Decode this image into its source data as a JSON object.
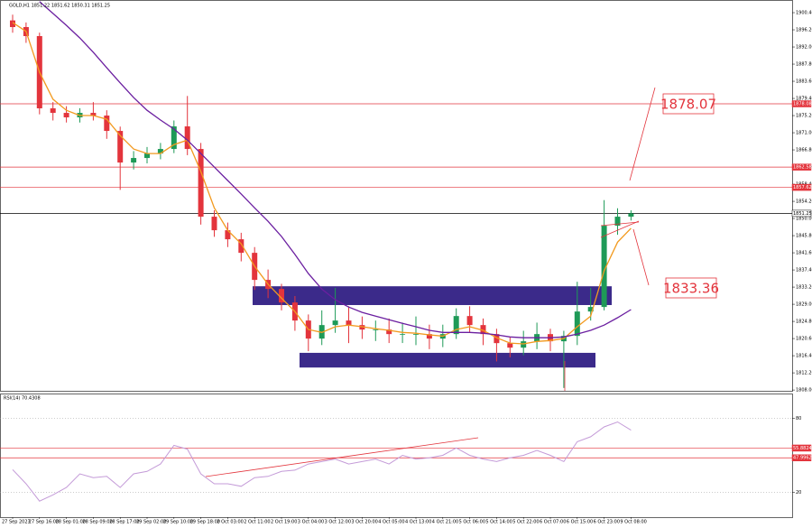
{
  "chart_data": [
    {
      "type": "candlestick",
      "title": "GOLD,H1  1851.22 1851.62 1850.31 1851.25",
      "categories": [
        "27 Sep 2023",
        null,
        "27 Sep 16:00",
        null,
        "28 Sep 01:00",
        null,
        "28 Sep 09:00",
        null,
        "28 Sep 17:00",
        null,
        "29 Sep 02:00",
        null,
        "29 Sep 10:00",
        null,
        "29 Sep 18:00",
        null,
        "2 Oct 03:00",
        null,
        "2 Oct 11:00",
        null,
        "2 Oct 19:00",
        null,
        "3 Oct 04:00",
        null,
        "3 Oct 12:00",
        null,
        "3 Oct 20:00",
        null,
        "4 Oct 05:00",
        null,
        "4 Oct 13:00",
        null,
        "4 Oct 21:00",
        null,
        "5 Oct 06:00",
        null,
        "5 Oct 14:00",
        null,
        "5 Oct 22:00",
        null,
        "6 Oct 07:00",
        null,
        "6 Oct 15:00",
        null,
        "6 Oct 23:00",
        null,
        "9 Oct 08:00"
      ],
      "open": [
        1898.5,
        1896.87,
        1894.66,
        1876.97,
        1875.86,
        1874.76,
        1875.86,
        1875.2,
        1871.44,
        1863.7,
        1864.81,
        1865.91,
        1867.02,
        1872.55,
        1867.02,
        1850.44,
        1847.12,
        1844.91,
        1841.59,
        1834.96,
        1832.75,
        1829.43,
        1825.01,
        1820.59,
        1823.9,
        1825.01,
        1823.9,
        1822.8,
        1822.8,
        1821.69,
        1821.69,
        1821.69,
        1820.59,
        1821.69,
        1826.11,
        1823.9,
        1821.69,
        1819.48,
        1818.37,
        1819.93,
        1821.69,
        1819.93,
        1821.25,
        1827.22,
        1828.33,
        1848.23,
        1850.44
      ],
      "high": [
        1899.9,
        1898,
        1895.5,
        1878.5,
        1877.5,
        1877,
        1878.5,
        1876.5,
        1872.5,
        1866.5,
        1867.5,
        1868.5,
        1874,
        1880,
        1868.5,
        1852,
        1849,
        1846.5,
        1843,
        1837.5,
        1834,
        1831,
        1826.5,
        1827.5,
        1833,
        1828.5,
        1826,
        1825,
        1825.5,
        1824.5,
        1826,
        1824,
        1824,
        1828,
        1828.5,
        1825.5,
        1823,
        1821,
        1822.5,
        1824.5,
        1823,
        1822.5,
        1834.5,
        1833,
        1854.5,
        1852.5,
        1852
      ],
      "low": [
        1895.5,
        1893,
        1875.5,
        1874,
        1873.5,
        1873.5,
        1874,
        1869.5,
        1857,
        1862,
        1863.5,
        1864.5,
        1866,
        1865.5,
        1848.5,
        1845.5,
        1843,
        1839.5,
        1832.5,
        1830.5,
        1827.5,
        1822.5,
        1817.5,
        1819,
        1822,
        1819.5,
        1820.5,
        1820,
        1819.5,
        1819.5,
        1819,
        1818,
        1818.5,
        1820.5,
        1822,
        1819,
        1815,
        1816,
        1816.5,
        1818,
        1817.5,
        1808.5,
        1819,
        1825,
        1827.5,
        1846,
        1849.5
      ],
      "close": [
        1896.87,
        1894.66,
        1876.97,
        1875.86,
        1874.76,
        1875.86,
        1875.2,
        1871.44,
        1863.7,
        1864.81,
        1865.91,
        1867.02,
        1872.55,
        1867.02,
        1850.44,
        1847.12,
        1844.91,
        1841.59,
        1834.96,
        1832.75,
        1829.43,
        1825.01,
        1820.59,
        1823.9,
        1825.01,
        1823.9,
        1822.8,
        1822.8,
        1821.69,
        1821.69,
        1821.69,
        1820.59,
        1821.69,
        1826.11,
        1823.9,
        1821.69,
        1819.48,
        1818.37,
        1819.93,
        1821.69,
        1819.93,
        1821.25,
        1827.22,
        1828.33,
        1848.23,
        1850.44,
        1851.25
      ],
      "up_color": "#1e9a57",
      "down_color": "#e3343c",
      "series": [
        {
          "color": "#f29a1f",
          "values": [
            1898.0,
            1895.8,
            1885.8,
            1879.2,
            1876.5,
            1875.2,
            1875.2,
            1874.3,
            1870.3,
            1867.0,
            1865.9,
            1865.9,
            1868.1,
            1869.2,
            1861.5,
            1852.6,
            1847.1,
            1843.8,
            1838.3,
            1833.9,
            1830.5,
            1827.2,
            1822.8,
            1822.1,
            1823.5,
            1823.9,
            1823.5,
            1823.0,
            1822.6,
            1822.1,
            1821.9,
            1821.5,
            1821.2,
            1822.8,
            1823.5,
            1822.6,
            1820.8,
            1819.5,
            1819.3,
            1819.9,
            1820.1,
            1820.6,
            1823.5,
            1826.1,
            1837.2,
            1844.2,
            1847.6
          ]
        },
        {
          "color": "#6b1fa0",
          "values": [
            null,
            null,
            1903.1,
            1900.2,
            1897.3,
            1894.2,
            1890.7,
            1886.9,
            1883.2,
            1879.6,
            1876.5,
            1874.1,
            1871.9,
            1869.2,
            1865.9,
            1862.6,
            1859.3,
            1856.0,
            1852.6,
            1849.3,
            1845.6,
            1841.2,
            1836.5,
            1832.7,
            1830.1,
            1828.3,
            1827.0,
            1826.1,
            1825.2,
            1824.3,
            1823.5,
            1822.6,
            1822.1,
            1822.1,
            1822.1,
            1821.9,
            1821.5,
            1821.0,
            1820.8,
            1820.8,
            1820.8,
            1821.0,
            1821.7,
            1822.6,
            1823.9,
            1825.7,
            1827.7
          ]
        }
      ],
      "ylim": [
        1807.8,
        1903.5
      ],
      "yticks": [
        {
          "value": 1808.0,
          "label": "1808.00"
        },
        {
          "value": 1812.2,
          "label": "1812.20"
        },
        {
          "value": 1816.4,
          "label": "1816.40"
        },
        {
          "value": 1820.6,
          "label": "1820.60"
        },
        {
          "value": 1824.8,
          "label": "1824.80"
        },
        {
          "value": 1829.0,
          "label": "1829.00"
        },
        {
          "value": 1833.2,
          "label": "1833.20"
        },
        {
          "value": 1837.4,
          "label": "1837.40"
        },
        {
          "value": 1841.6,
          "label": "1841.60"
        },
        {
          "value": 1845.8,
          "label": "1845.80"
        },
        {
          "value": 1850.0,
          "label": "1850.00"
        },
        {
          "value": 1854.2,
          "label": "1854.20"
        },
        {
          "value": 1858.4,
          "label": "1858.40"
        },
        {
          "value": 1862.6,
          "label": "1862.60"
        },
        {
          "value": 1866.8,
          "label": "1866.80"
        },
        {
          "value": 1871.0,
          "label": "1871.00"
        },
        {
          "value": 1875.2,
          "label": "1875.20"
        },
        {
          "value": 1879.4,
          "label": "1879.40"
        },
        {
          "value": 1883.6,
          "label": "1883.60"
        },
        {
          "value": 1887.8,
          "label": "1887.80"
        },
        {
          "value": 1892.0,
          "label": "1892.00"
        },
        {
          "value": 1896.2,
          "label": "1896.20"
        },
        {
          "value": 1900.4,
          "label": "1900.40"
        }
      ],
      "levels": [
        {
          "value": 1878.08,
          "color": "#e3343c"
        },
        {
          "value": 1862.58,
          "color": "#e3343c"
        },
        {
          "value": 1857.62,
          "color": "#e3343c"
        },
        {
          "value": 1851.25,
          "color": "#000000"
        }
      ],
      "zones": [
        {
          "low": 1828.8,
          "high": 1833.4,
          "color": "#3b2a8a"
        },
        {
          "low": 1813.5,
          "high": 1817.1,
          "color": "#3b2a8a"
        }
      ],
      "annotations": [
        "1878.07",
        "1833.36"
      ]
    },
    {
      "type": "line",
      "title": "RSI(14) 70.4308",
      "values": [
        38.5,
        27,
        13,
        18,
        24,
        35,
        32,
        33,
        24,
        35,
        37,
        43,
        58,
        55,
        35,
        27,
        27,
        25,
        32,
        33,
        37,
        38,
        43,
        45,
        47,
        43,
        45,
        47,
        43,
        50,
        47,
        48,
        50,
        56,
        50,
        47,
        45,
        48,
        50,
        54,
        50,
        45,
        61,
        65,
        73,
        77,
        70.4
      ],
      "color": "#c49bd8",
      "ylim": [
        0,
        100
      ],
      "yticks": [
        20,
        80
      ],
      "levels": [
        {
          "value": 55.8824,
          "color": "#e3343c"
        },
        {
          "value": 47.9962,
          "color": "#e3343c"
        }
      ]
    }
  ]
}
